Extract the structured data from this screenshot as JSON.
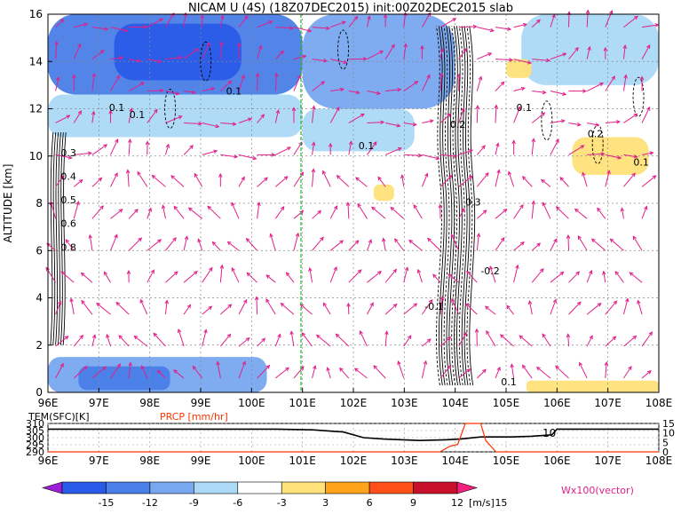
{
  "chart_data": [
    {
      "type": "heatmap",
      "title": "NICAM U (4S) (18Z07DEC2015) init:00Z02DEC2015 slab",
      "ylabel": "ALTITUDE [km]",
      "xticks": [
        "96E",
        "97E",
        "98E",
        "99E",
        "100E",
        "101E",
        "102E",
        "103E",
        "104E",
        "105E",
        "106E",
        "107E",
        "108E"
      ],
      "xlim": [
        96,
        108
      ],
      "yticks": [
        "0",
        "2",
        "4",
        "6",
        "8",
        "10",
        "12",
        "14",
        "16"
      ],
      "ylim": [
        0,
        16
      ],
      "grid": true,
      "reference_line_lon": 101,
      "contour_labels": [
        "0.1",
        "0.1",
        "0.1",
        "0.1",
        "0.1",
        "0.1",
        "0.2",
        "0.3",
        "0.4",
        "0.5",
        "0.6",
        "0.8",
        "-0.1",
        "-0.2",
        "0.2",
        "0.3",
        "0.1"
      ],
      "regions": [
        {
          "lon": [
            96,
            101
          ],
          "alt": [
            12.6,
            16
          ],
          "level": -9
        },
        {
          "lon": [
            97.3,
            99.8
          ],
          "alt": [
            13.2,
            15.6
          ],
          "level": -12
        },
        {
          "lon": [
            101,
            104
          ],
          "alt": [
            12,
            16
          ],
          "level": -6
        },
        {
          "lon": [
            96,
            101
          ],
          "alt": [
            10.8,
            12.6
          ],
          "level": -3
        },
        {
          "lon": [
            101,
            103.2
          ],
          "alt": [
            10.2,
            12
          ],
          "level": -3
        },
        {
          "lon": [
            96,
            100.3
          ],
          "alt": [
            0,
            1.5
          ],
          "level": -6
        },
        {
          "lon": [
            96.6,
            98.4
          ],
          "alt": [
            0.1,
            1.1
          ],
          "level": -9
        },
        {
          "lon": [
            105.3,
            108
          ],
          "alt": [
            13,
            16
          ],
          "level": -3
        },
        {
          "lon": [
            106.3,
            107.8
          ],
          "alt": [
            9.2,
            10.8
          ],
          "level": 3
        },
        {
          "lon": [
            102.4,
            102.8
          ],
          "alt": [
            8.1,
            8.8
          ],
          "level": 3
        },
        {
          "lon": [
            105,
            105.5
          ],
          "alt": [
            13.3,
            14.1
          ],
          "level": 3
        },
        {
          "lon": [
            105.4,
            108
          ],
          "alt": [
            0,
            0.5
          ],
          "level": 3
        }
      ]
    },
    {
      "type": "line",
      "labels": {
        "left": "TEM(SFC)[K]",
        "right": "PRCP [mm/hr]"
      },
      "left_yticks": [
        "310",
        "305",
        "300",
        "295",
        "290"
      ],
      "left_ylim": [
        290,
        310
      ],
      "right_yticks": [
        "15",
        "10",
        "5",
        "0"
      ],
      "right_ylim": [
        0,
        15
      ],
      "xticks": [
        "96E",
        "97E",
        "98E",
        "99E",
        "100E",
        "101E",
        "102E",
        "103E",
        "104E",
        "105E",
        "106E",
        "107E",
        "108E"
      ],
      "series": [
        {
          "color": "#000000",
          "x": [
            96,
            100.5,
            101.2,
            101.8,
            102.2,
            102.6,
            103.3,
            103.8,
            104.1,
            104.5,
            105.1,
            105.5,
            105.9,
            106,
            108
          ],
          "y": [
            306,
            306,
            305.5,
            304,
            300,
            299,
            298,
            298.5,
            299,
            300.5,
            300.5,
            301,
            302,
            306,
            306
          ]
        },
        {
          "color": "#ff3300",
          "x": [
            96,
            103.7,
            103.9,
            104.05,
            104.2,
            104.4,
            104.5,
            104.6,
            104.8,
            105,
            106,
            108
          ],
          "y": [
            0,
            0,
            3,
            4,
            15,
            15,
            15,
            6,
            0,
            0,
            0,
            0
          ]
        }
      ],
      "annotation": "10"
    }
  ],
  "colorbar": {
    "ticks": [
      "-15",
      "-12",
      "-9",
      "-6",
      "-3",
      "3",
      "6",
      "9",
      "12",
      "15"
    ],
    "unit": "[m/s]",
    "colors": [
      "#9f1fd8",
      "#2a5be8",
      "#4a7ee8",
      "#78a8ef",
      "#acd9f6",
      "#ffffff",
      "#ffe27a",
      "#ffa31a",
      "#ff501a",
      "#c8102a",
      "#f2217f"
    ],
    "vector_label": "Wx100(vector)"
  }
}
